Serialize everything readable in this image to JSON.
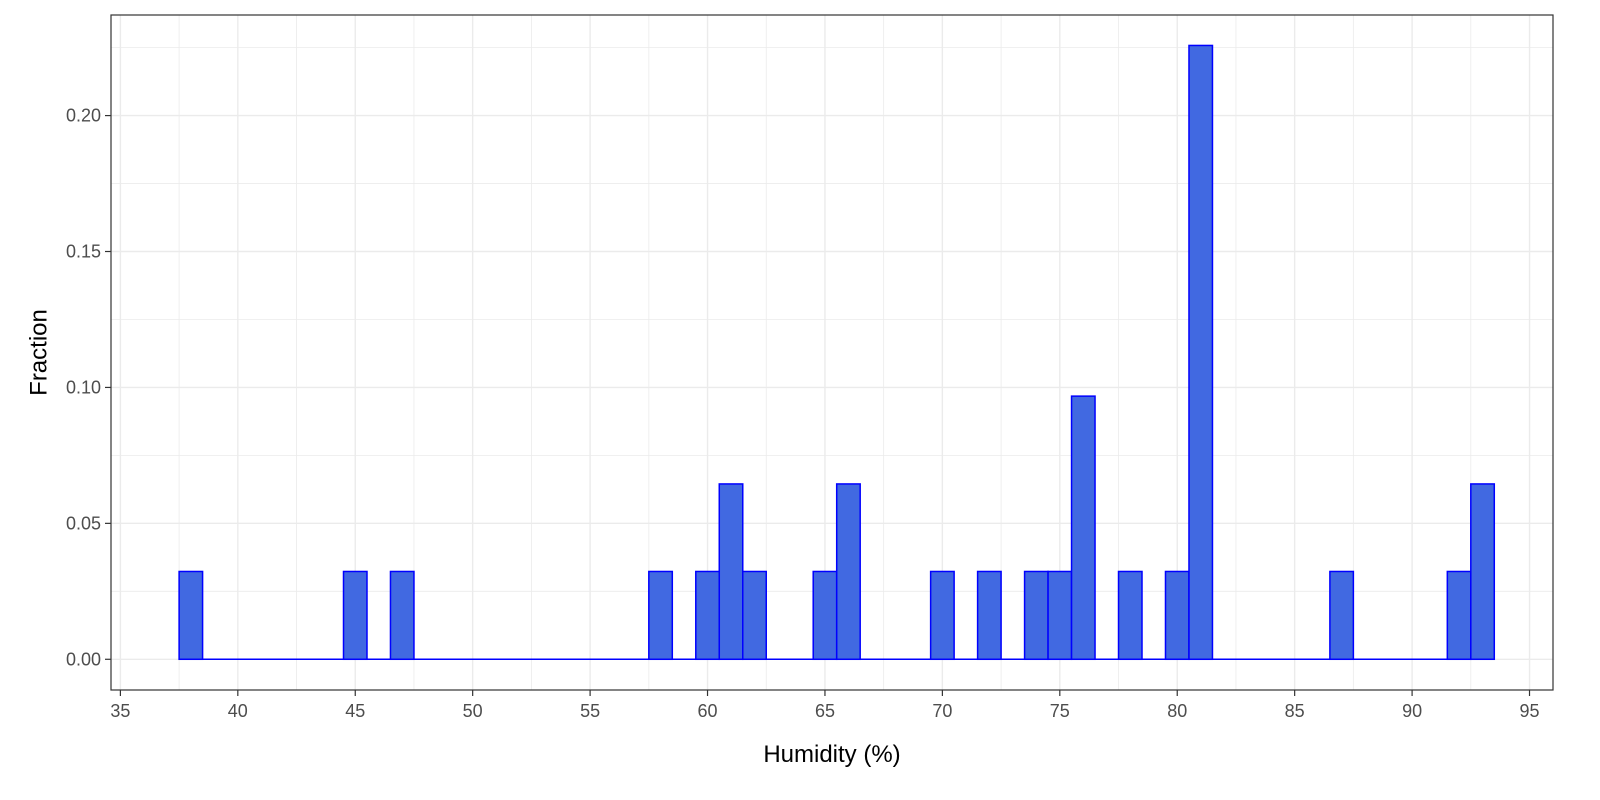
{
  "chart_data": {
    "type": "bar",
    "xlabel": "Humidity (%)",
    "ylabel": "Fraction",
    "xlim": [
      34.6,
      96.0
    ],
    "ylim": [
      -0.0113,
      0.237
    ],
    "bin_width": 1,
    "x_ticks": [
      35,
      40,
      45,
      50,
      55,
      60,
      65,
      70,
      75,
      80,
      85,
      90,
      95
    ],
    "x_tick_labels": [
      "35",
      "40",
      "45",
      "50",
      "55",
      "60",
      "65",
      "70",
      "75",
      "80",
      "85",
      "90",
      "95"
    ],
    "y_ticks": [
      0,
      0.05,
      0.1,
      0.15,
      0.2
    ],
    "y_tick_labels": [
      "0.00",
      "0.05",
      "0.10",
      "0.15",
      "0.20"
    ],
    "grid": true,
    "legend": "none",
    "bin_range": [
      37.5,
      93.5
    ],
    "bins": [
      {
        "x": 38,
        "value": 0.0323
      },
      {
        "x": 45,
        "value": 0.0323
      },
      {
        "x": 47,
        "value": 0.0323
      },
      {
        "x": 58,
        "value": 0.0323
      },
      {
        "x": 60,
        "value": 0.0323
      },
      {
        "x": 61,
        "value": 0.0645
      },
      {
        "x": 62,
        "value": 0.0323
      },
      {
        "x": 65,
        "value": 0.0323
      },
      {
        "x": 66,
        "value": 0.0645
      },
      {
        "x": 70,
        "value": 0.0323
      },
      {
        "x": 72,
        "value": 0.0323
      },
      {
        "x": 74,
        "value": 0.0323
      },
      {
        "x": 75,
        "value": 0.0323
      },
      {
        "x": 76,
        "value": 0.0968
      },
      {
        "x": 78,
        "value": 0.0323
      },
      {
        "x": 80,
        "value": 0.0323
      },
      {
        "x": 81,
        "value": 0.2258
      },
      {
        "x": 87,
        "value": 0.0323
      },
      {
        "x": 92,
        "value": 0.0323
      },
      {
        "x": 93,
        "value": 0.0645
      }
    ],
    "colors": {
      "fill": "#4169E1",
      "stroke": "#0000FF",
      "grid": "#EBEBEB",
      "panel_border": "#333333"
    }
  }
}
